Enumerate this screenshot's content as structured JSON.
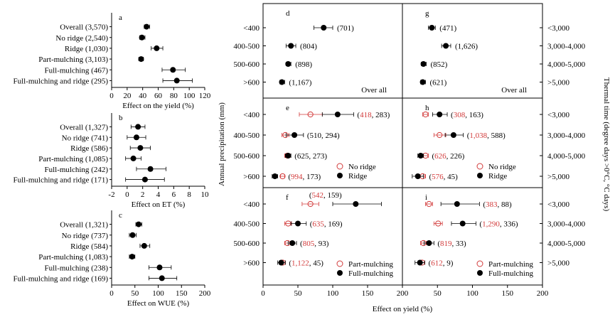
{
  "left_charts": [
    {
      "id": "a",
      "letter": "a",
      "xlabel": "Effect on the yield (%)",
      "xticks": [
        0,
        20,
        40,
        60,
        80,
        100,
        120
      ],
      "xlim": [
        0,
        120
      ],
      "rows": [
        {
          "label": "Overall (3,570)",
          "mean": 45,
          "lo": 42,
          "hi": 49
        },
        {
          "label": "No ridge (2,540)",
          "mean": 39,
          "lo": 36,
          "hi": 43
        },
        {
          "label": "Ridge (1,030)",
          "mean": 58,
          "lo": 51,
          "hi": 66
        },
        {
          "label": "Part-mulching (3,103)",
          "mean": 38,
          "lo": 35,
          "hi": 41
        },
        {
          "label": "Full-mulching (467)",
          "mean": 79,
          "lo": 65,
          "hi": 95
        },
        {
          "label": "Full-mulching and ridge (295)",
          "mean": 84,
          "lo": 66,
          "hi": 104
        }
      ]
    },
    {
      "id": "b",
      "letter": "b",
      "xlabel": "Effect on ET (%)",
      "xticks": [
        -2,
        0,
        2,
        4,
        6,
        8,
        10
      ],
      "xlim": [
        -2,
        10
      ],
      "rows": [
        {
          "label": "Overall (1,327)",
          "mean": 1.4,
          "lo": 0.5,
          "hi": 2.3
        },
        {
          "label": "No ridge (741)",
          "mean": 1.2,
          "lo": 0.0,
          "hi": 2.4
        },
        {
          "label": "Ridge (586)",
          "mean": 1.7,
          "lo": 0.4,
          "hi": 3.0
        },
        {
          "label": "Part-mulching (1,085)",
          "mean": 0.8,
          "lo": -0.2,
          "hi": 1.8
        },
        {
          "label": "Full-mulching (242)",
          "mean": 3.0,
          "lo": 1.2,
          "hi": 5.0
        },
        {
          "label": "Full-mulching and ridge (171)",
          "mean": 2.3,
          "lo": -0.2,
          "hi": 4.8
        }
      ]
    },
    {
      "id": "c",
      "letter": "c",
      "xlabel": "Effect on WUE (%)",
      "xticks": [
        0,
        50,
        100,
        150,
        200
      ],
      "xlim": [
        0,
        200
      ],
      "rows": [
        {
          "label": "Overall (1,321)",
          "mean": 58,
          "lo": 52,
          "hi": 65
        },
        {
          "label": "No ridge (737)",
          "mean": 45,
          "lo": 38,
          "hi": 53
        },
        {
          "label": "Ridge (584)",
          "mean": 70,
          "lo": 61,
          "hi": 82
        },
        {
          "label": "Part-mulching (1,083)",
          "mean": 44,
          "lo": 38,
          "hi": 50
        },
        {
          "label": "Full-mulching (238)",
          "mean": 103,
          "lo": 80,
          "hi": 128
        },
        {
          "label": "Full-mulching and ridge (169)",
          "mean": 108,
          "lo": 80,
          "hi": 140
        }
      ]
    }
  ],
  "grid": {
    "xlabel": "Effect on yield (%)",
    "xticks": [
      0,
      50,
      100,
      150,
      200
    ],
    "xlim": [
      0,
      200
    ],
    "ylabel_left": "Annual precipitation (mm)",
    "ylabel_right": "Thermal time (degree days >0°C, °C days)",
    "left_categories": [
      "<400",
      "400-500",
      "500-600",
      ">600"
    ],
    "right_categories": [
      "<3,000",
      "3,000-4,000",
      "4,000-5,000",
      ">5,000"
    ],
    "panels": [
      {
        "letter": "d",
        "col": 0,
        "row": 0,
        "note": "Over all",
        "points": [
          {
            "mean": 87,
            "lo": 73,
            "hi": 100,
            "n": "(701)"
          },
          {
            "mean": 40,
            "lo": 33,
            "hi": 47,
            "n": "(804)"
          },
          {
            "mean": 36,
            "lo": 33,
            "hi": 40,
            "n": "(898)"
          },
          {
            "mean": 27,
            "lo": 24,
            "hi": 31,
            "n": "(1,167)"
          }
        ]
      },
      {
        "letter": "g",
        "col": 1,
        "row": 0,
        "note": "Over all",
        "points": [
          {
            "mean": 42,
            "lo": 37,
            "hi": 47,
            "n": "(471)"
          },
          {
            "mean": 62,
            "lo": 56,
            "hi": 69,
            "n": "(1,626)"
          },
          {
            "mean": 30,
            "lo": 27,
            "hi": 34,
            "n": "(852)"
          },
          {
            "mean": 29,
            "lo": 26,
            "hi": 33,
            "n": "(621)"
          }
        ]
      },
      {
        "letter": "e",
        "col": 0,
        "row": 1,
        "legend": [
          {
            "label": "No ridge",
            "style": "open"
          },
          {
            "label": "Ridge",
            "style": "filled"
          }
        ],
        "points": [
          {
            "open": 68,
            "open_lo": 52,
            "open_hi": 85,
            "filled": 107,
            "filled_lo": 85,
            "filled_hi": 130,
            "n_red": "418",
            "n_black": "283"
          },
          {
            "open": 32,
            "open_lo": 27,
            "open_hi": 37,
            "filled": 45,
            "filled_lo": 33,
            "filled_hi": 58,
            "n_red": "",
            "n_black": "510, 294"
          },
          {
            "open": 35,
            "open_lo": 31,
            "open_hi": 39,
            "filled": 36,
            "filled_lo": 32,
            "filled_hi": 40,
            "n_red": "",
            "n_black": "625, 273"
          },
          {
            "open": 28,
            "open_lo": 25,
            "open_hi": 31,
            "filled": 17,
            "filled_lo": 13,
            "filled_hi": 21,
            "n_red": "994",
            "n_black": "173"
          }
        ]
      },
      {
        "letter": "h",
        "col": 1,
        "row": 1,
        "legend": [
          {
            "label": "No ridge",
            "style": "open"
          },
          {
            "label": "Ridge",
            "style": "filled"
          }
        ],
        "points": [
          {
            "open": 33,
            "open_lo": 29,
            "open_hi": 37,
            "filled": 53,
            "filled_lo": 43,
            "filled_hi": 64,
            "n_red": "308",
            "n_black": "163"
          },
          {
            "open": 53,
            "open_lo": 45,
            "open_hi": 62,
            "filled": 73,
            "filled_lo": 61,
            "filled_hi": 87,
            "n_red": "1,038",
            "n_black": "588"
          },
          {
            "open": 33,
            "open_lo": 29,
            "open_hi": 37,
            "filled": 26,
            "filled_lo": 22,
            "filled_hi": 30,
            "n_red": "626",
            "n_black": "226"
          },
          {
            "open": 29,
            "open_lo": 25,
            "open_hi": 33,
            "filled": 22,
            "filled_lo": 14,
            "filled_hi": 30,
            "n_red": "576",
            "n_black": "45"
          }
        ]
      },
      {
        "letter": "f",
        "col": 0,
        "row": 2,
        "legend": [
          {
            "label": "Part-mulching",
            "style": "open"
          },
          {
            "label": "Full-mulching",
            "style": "filled"
          }
        ],
        "points": [
          {
            "open": 68,
            "open_lo": 56,
            "open_hi": 80,
            "filled": 133,
            "filled_lo": 100,
            "filled_hi": 170,
            "n_red": "542",
            "n_black": "159"
          },
          {
            "open": 36,
            "open_lo": 31,
            "open_hi": 41,
            "filled": 50,
            "filled_lo": 40,
            "filled_hi": 62,
            "n_red": "635",
            "n_black": "169"
          },
          {
            "open": 35,
            "open_lo": 31,
            "open_hi": 39,
            "filled": 42,
            "filled_lo": 36,
            "filled_hi": 48,
            "n_red": "805",
            "n_black": "93"
          },
          {
            "open": 28,
            "open_lo": 24,
            "open_hi": 32,
            "filled": 26,
            "filled_lo": 21,
            "filled_hi": 32,
            "n_red": "1,122",
            "n_black": "45"
          }
        ]
      },
      {
        "letter": "i",
        "col": 1,
        "row": 2,
        "legend": [
          {
            "label": "Part-mulching",
            "style": "open"
          },
          {
            "label": "Full-mulching",
            "style": "filled"
          }
        ],
        "points": [
          {
            "open": 38,
            "open_lo": 33,
            "open_hi": 43,
            "filled": 78,
            "filled_lo": 55,
            "filled_hi": 110,
            "n_red": "383",
            "n_black": "88"
          },
          {
            "open": 51,
            "open_lo": 45,
            "open_hi": 57,
            "filled": 86,
            "filled_lo": 70,
            "filled_hi": 105,
            "n_red": "1,290",
            "n_black": "336"
          },
          {
            "open": 30,
            "open_lo": 26,
            "open_hi": 34,
            "filled": 38,
            "filled_lo": 31,
            "filled_hi": 45,
            "n_red": "819",
            "n_black": "33"
          },
          {
            "open": 28,
            "open_lo": 24,
            "open_hi": 32,
            "filled": 25,
            "filled_lo": 18,
            "filled_hi": 32,
            "n_red": "612",
            "n_black": "9"
          }
        ]
      }
    ]
  },
  "chart_data": [
    {
      "type": "scatter",
      "title": "a",
      "xlabel": "Effect on the yield (%)",
      "xlim": [
        0,
        120
      ],
      "categories": [
        "Overall (3,570)",
        "No ridge (2,540)",
        "Ridge (1,030)",
        "Part-mulching (3,103)",
        "Full-mulching (467)",
        "Full-mulching and ridge (295)"
      ],
      "values": [
        45,
        39,
        58,
        38,
        79,
        84
      ]
    },
    {
      "type": "scatter",
      "title": "b",
      "xlabel": "Effect on ET (%)",
      "xlim": [
        -2,
        10
      ],
      "categories": [
        "Overall (1,327)",
        "No ridge (741)",
        "Ridge (586)",
        "Part-mulching (1,085)",
        "Full-mulching (242)",
        "Full-mulching and ridge (171)"
      ],
      "values": [
        1.4,
        1.2,
        1.7,
        0.8,
        3.0,
        2.3
      ]
    },
    {
      "type": "scatter",
      "title": "c",
      "xlabel": "Effect on WUE (%)",
      "xlim": [
        0,
        200
      ],
      "categories": [
        "Overall (1,321)",
        "No ridge (737)",
        "Ridge (584)",
        "Part-mulching (1,083)",
        "Full-mulching (238)",
        "Full-mulching and ridge (169)"
      ],
      "values": [
        58,
        45,
        70,
        44,
        103,
        108
      ]
    },
    {
      "type": "scatter",
      "title": "d-i",
      "xlabel": "Effect on yield (%)",
      "ylabel": "Annual precipitation (mm)",
      "xlim": [
        0,
        200
      ],
      "categories": [
        "<400",
        "400-500",
        "500-600",
        ">600"
      ]
    }
  ]
}
